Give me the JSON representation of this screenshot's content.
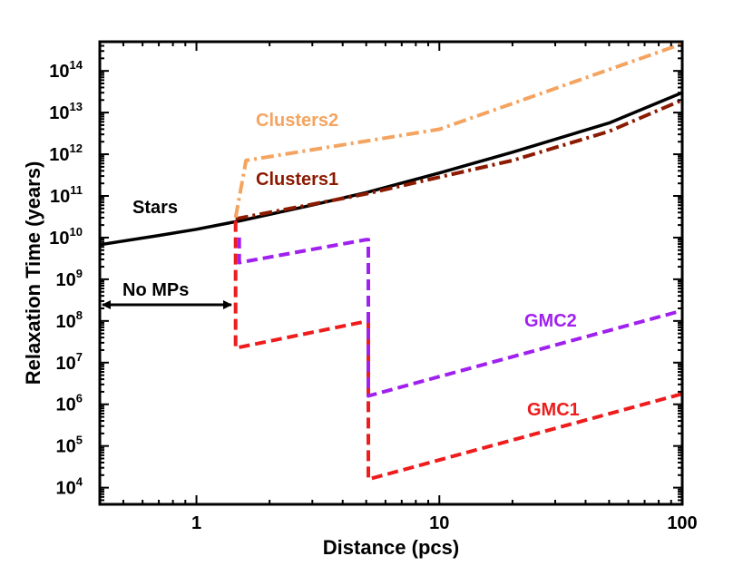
{
  "chart_data": {
    "type": "line",
    "xscale": "log",
    "yscale": "log",
    "xlim": [
      0.4,
      100
    ],
    "ylim_log10": [
      3.6,
      14.7
    ],
    "xlabel": "Distance (pcs)",
    "ylabel": "Relaxation Time (years)",
    "xticks": [
      {
        "value": 1,
        "label": "1"
      },
      {
        "value": 10,
        "label": "10"
      },
      {
        "value": 100,
        "label": "100"
      }
    ],
    "yticks": [
      {
        "exp": 4,
        "base": "10",
        "sup": "4"
      },
      {
        "exp": 5,
        "base": "10",
        "sup": "5"
      },
      {
        "exp": 6,
        "base": "10",
        "sup": "6"
      },
      {
        "exp": 7,
        "base": "10",
        "sup": "7"
      },
      {
        "exp": 8,
        "base": "10",
        "sup": "8"
      },
      {
        "exp": 9,
        "base": "10",
        "sup": "9"
      },
      {
        "exp": 10,
        "base": "10",
        "sup": "10"
      },
      {
        "exp": 11,
        "base": "10",
        "sup": "11"
      },
      {
        "exp": 12,
        "base": "10",
        "sup": "12"
      },
      {
        "exp": 13,
        "base": "10",
        "sup": "13"
      },
      {
        "exp": 14,
        "base": "10",
        "sup": "14"
      }
    ],
    "series": [
      {
        "name": "Stars",
        "color": "#000000",
        "style": "solid",
        "x": [
          0.4,
          0.7,
          1.0,
          1.5,
          3,
          5,
          10,
          20,
          50,
          100
        ],
        "log10_y": [
          9.83,
          10.05,
          10.2,
          10.4,
          10.78,
          11.08,
          11.55,
          12.05,
          12.75,
          13.48
        ]
      },
      {
        "name": "Clusters1",
        "color": "#8b1a00",
        "style": "dashdot",
        "x": [
          1.45,
          3,
          5,
          10,
          20,
          50,
          100
        ],
        "log10_y": [
          10.45,
          10.8,
          11.05,
          11.45,
          11.85,
          12.55,
          13.3
        ]
      },
      {
        "name": "Clusters2",
        "color": "#f4a460",
        "style": "dashdot",
        "x": [
          1.45,
          1.6,
          10,
          100
        ],
        "log10_y": [
          10.48,
          11.85,
          12.6,
          14.65
        ]
      },
      {
        "name": "GMC1",
        "color": "#ee1c1c",
        "style": "dashed",
        "x": [
          1.45,
          1.45,
          5.1,
          5.1,
          100
        ],
        "log10_y": [
          10.4,
          7.35,
          8.0,
          4.2,
          6.25
        ]
      },
      {
        "name": "GMC2",
        "color": "#a020f0",
        "style": "dashed",
        "x": [
          1.5,
          1.5,
          5.0,
          5.1,
          5.1,
          100
        ],
        "log10_y": [
          10.0,
          9.4,
          9.95,
          9.95,
          6.2,
          8.25
        ]
      }
    ],
    "annotations": [
      {
        "text": "Stars",
        "color": "#000000"
      },
      {
        "text": "Clusters1",
        "color": "#8b1a00"
      },
      {
        "text": "Clusters2",
        "color": "#f4a460"
      },
      {
        "text": "GMC1",
        "color": "#ee1c1c"
      },
      {
        "text": "GMC2",
        "color": "#a020f0"
      },
      {
        "text": "No MPs",
        "color": "#000000"
      }
    ]
  }
}
